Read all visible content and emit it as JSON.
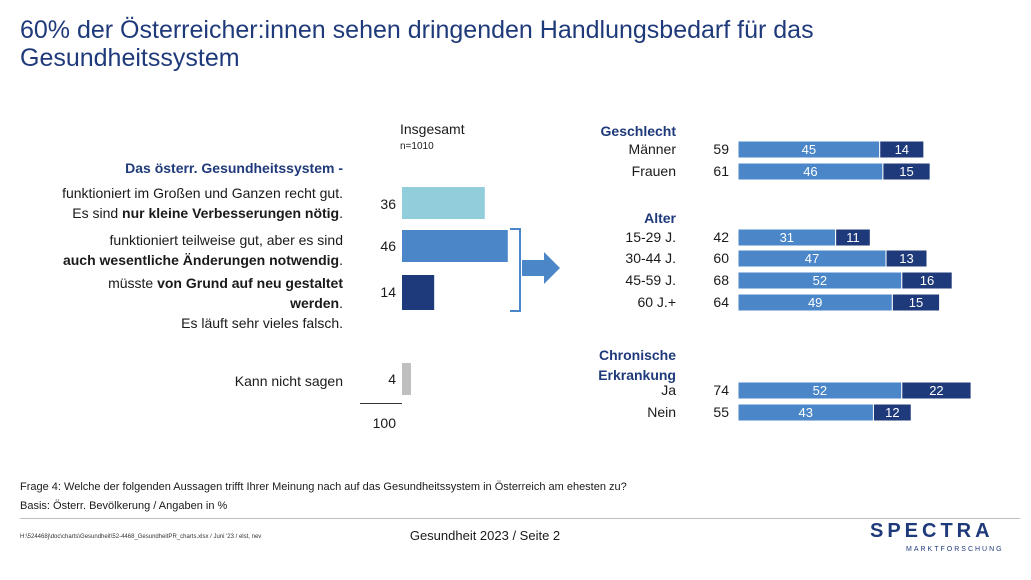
{
  "title": "60% der Österreicher:innen sehen dringenden Handlungsbedarf für das Gesundheitssystem",
  "overall_header": "Insgesamt",
  "overall_n": "n=1010",
  "stem": "Das österr. Gesundheitssystem -",
  "statements": [
    {
      "line1": "funktioniert im Großen und Ganzen recht gut.",
      "line2_pre": "Es sind ",
      "line2_bold": "nur kleine Verbesserungen nötig",
      "line2_post": "."
    },
    {
      "line1": "funktioniert teilweise gut, aber es sind",
      "line2_pre": "",
      "line2_bold": "auch wesentliche Änderungen notwendig",
      "line2_post": "."
    },
    {
      "line1_pre": "müsste ",
      "line1_bold": "von Grund auf neu gestaltet werden",
      "line1_post": ".",
      "line2": "Es läuft sehr vieles falsch."
    }
  ],
  "dont_know_label": "Kann nicht sagen",
  "chart_data": [
    {
      "type": "bar",
      "categories": [
        "nur kleine Verbesserungen nötig",
        "auch wesentliche Änderungen notwendig",
        "von Grund auf neu gestaltet werden",
        "Kann nicht sagen"
      ],
      "values": [
        36,
        46,
        14,
        4
      ],
      "total": 100,
      "colors": [
        "#92cddc",
        "#4a86c8",
        "#1f3a7a",
        "#bfbfbf"
      ]
    },
    {
      "type": "bar",
      "stacked": true,
      "segment_colors": [
        "#4a86c8",
        "#1f3a7a"
      ],
      "groups": [
        {
          "name": "Geschlecht",
          "rows": [
            {
              "label": "Männer",
              "total": 59,
              "values": [
                45,
                14
              ]
            },
            {
              "label": "Frauen",
              "total": 61,
              "values": [
                46,
                15
              ]
            }
          ]
        },
        {
          "name": "Alter",
          "rows": [
            {
              "label": "15-29 J.",
              "total": 42,
              "values": [
                31,
                11
              ]
            },
            {
              "label": "30-44 J.",
              "total": 60,
              "values": [
                47,
                13
              ]
            },
            {
              "label": "45-59 J.",
              "total": 68,
              "values": [
                52,
                16
              ]
            },
            {
              "label": "60 J.+",
              "total": 64,
              "values": [
                49,
                15
              ]
            }
          ]
        },
        {
          "name_line1": "Chronische",
          "name_line2": "Erkrankung",
          "rows": [
            {
              "label": "Ja",
              "total": 74,
              "values": [
                52,
                22
              ]
            },
            {
              "label": "Nein",
              "total": 55,
              "values": [
                43,
                12
              ]
            }
          ]
        }
      ]
    }
  ],
  "footer": {
    "question": "Frage 4: Welche der folgenden Aussagen trifft Ihrer Meinung nach auf das Gesundheitssystem in Österreich am ehesten zu?",
    "basis": "Basis: Österr. Bevölkerung / Angaben in %",
    "path": "H:\\524468j\\doc\\charts\\Gesundheit\\52-4468_GesundheitPR_charts.xlsx / Juni '23 / elst, nev",
    "page_info": "Gesundheit 2023  /  Seite 2",
    "logo": "SPECTRA",
    "logo_sub": "MARKTFORSCHUNG"
  }
}
